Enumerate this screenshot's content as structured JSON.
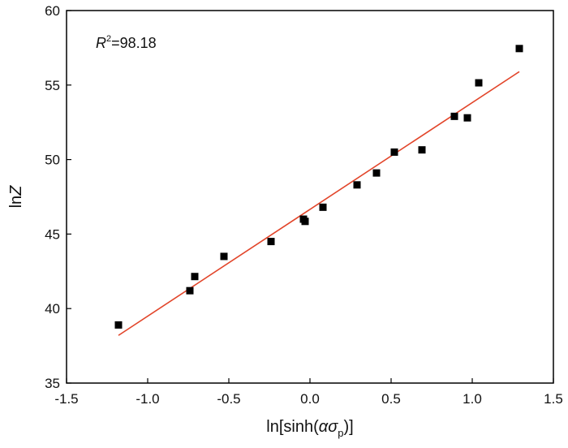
{
  "chart_data": {
    "type": "scatter",
    "xlabel_parts": {
      "prefix": "ln[sinh(",
      "alpha": "α",
      "sigma": "σ",
      "sub": "p",
      "suffix": ")]"
    },
    "ylabel_parts": {
      "prefix": "ln",
      "var": "Z"
    },
    "xlim": [
      -1.5,
      1.5
    ],
    "ylim": [
      35,
      60
    ],
    "x_ticks": [
      -1.5,
      -1.0,
      -0.5,
      0.0,
      0.5,
      1.0,
      1.5
    ],
    "x_tick_labels": [
      "-1.5",
      "-1.0",
      "-0.5",
      "0.0",
      "0.5",
      "1.0",
      "1.5"
    ],
    "y_ticks": [
      35,
      40,
      45,
      50,
      55,
      60
    ],
    "y_tick_labels": [
      "35",
      "40",
      "45",
      "50",
      "55",
      "60"
    ],
    "points": [
      {
        "x": -1.18,
        "y": 38.9
      },
      {
        "x": -0.74,
        "y": 41.2
      },
      {
        "x": -0.71,
        "y": 42.15
      },
      {
        "x": -0.53,
        "y": 43.5
      },
      {
        "x": -0.24,
        "y": 44.5
      },
      {
        "x": -0.04,
        "y": 46.0
      },
      {
        "x": -0.03,
        "y": 45.85
      },
      {
        "x": 0.08,
        "y": 46.8
      },
      {
        "x": 0.29,
        "y": 48.3
      },
      {
        "x": 0.41,
        "y": 49.1
      },
      {
        "x": 0.52,
        "y": 50.5
      },
      {
        "x": 0.69,
        "y": 50.65
      },
      {
        "x": 0.89,
        "y": 52.9
      },
      {
        "x": 0.97,
        "y": 52.8
      },
      {
        "x": 1.04,
        "y": 55.15
      },
      {
        "x": 1.29,
        "y": 57.45
      }
    ],
    "fit_line": {
      "x": [
        -1.18,
        1.29
      ],
      "y": [
        38.2,
        55.9
      ]
    },
    "annotation": {
      "var": "R",
      "sup": "2",
      "text": "=98.18"
    },
    "colors": {
      "points": "#000000",
      "fit_line": "#e2452a",
      "axis": "#000000"
    },
    "grid": false,
    "legend": "none"
  }
}
